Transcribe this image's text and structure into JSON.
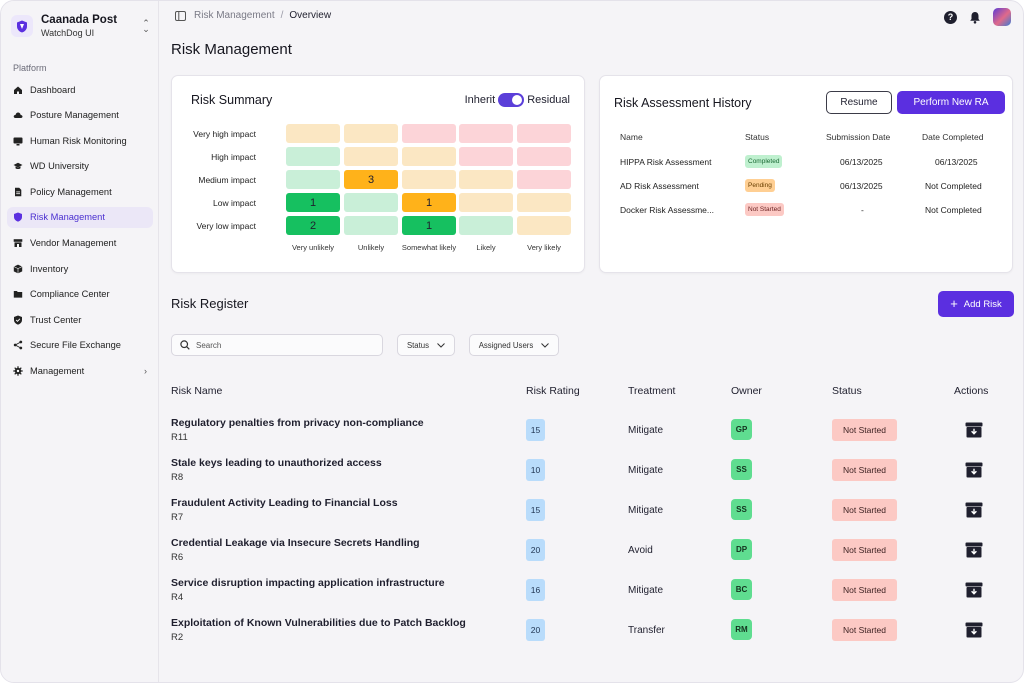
{
  "org": {
    "name": "Caanada Post",
    "subtitle": "WatchDog UI"
  },
  "sidebar": {
    "section_label": "Platform",
    "items": [
      {
        "label": "Dashboard",
        "icon": "home-icon"
      },
      {
        "label": "Posture Management",
        "icon": "cloud-icon"
      },
      {
        "label": "Human Risk Monitoring",
        "icon": "monitor-icon"
      },
      {
        "label": "WD University",
        "icon": "graduation-cap-icon"
      },
      {
        "label": "Policy Management",
        "icon": "document-icon"
      },
      {
        "label": "Risk Management",
        "icon": "shield-icon",
        "active": true
      },
      {
        "label": "Vendor Management",
        "icon": "storefront-icon"
      },
      {
        "label": "Inventory",
        "icon": "box-icon"
      },
      {
        "label": "Compliance Center",
        "icon": "folders-icon"
      },
      {
        "label": "Trust Center",
        "icon": "shield-check-icon"
      },
      {
        "label": "Secure File Exchange",
        "icon": "share-icon"
      },
      {
        "label": "Management",
        "icon": "gear-icon",
        "has_submenu": true
      }
    ]
  },
  "breadcrumb": {
    "parent": "Risk Management",
    "current": "Overview"
  },
  "page_title": "Risk Management",
  "risk_summary": {
    "title": "Risk Summary",
    "toggle_left": "Inherit",
    "toggle_right": "Residual",
    "toggle_state": "Residual",
    "impact_labels": [
      "Very high impact",
      "High impact",
      "Medium impact",
      "Low impact",
      "Very low impact"
    ],
    "likelihood_labels": [
      "Very unlikely",
      "Unlikely",
      "Somewhat likely",
      "Likely",
      "Very likely"
    ],
    "cells": [
      [
        "",
        "",
        "",
        "",
        ""
      ],
      [
        "",
        "",
        "",
        "",
        ""
      ],
      [
        "",
        "3",
        "",
        "",
        ""
      ],
      [
        "1",
        "",
        "1",
        "",
        ""
      ],
      [
        "2",
        "",
        "1",
        "",
        ""
      ]
    ],
    "colors": {
      "green_light": "#c9efd8",
      "green_strong": "#16c060",
      "beige": "#fbe7c3",
      "pink": "#fcd4d8",
      "orange": "#ffb21a"
    }
  },
  "ra_history": {
    "title": "Risk Assessment History",
    "resume_label": "Resume",
    "perform_label": "Perform New RA",
    "headers": [
      "Name",
      "Status",
      "Submission Date",
      "Date Completed"
    ],
    "rows": [
      {
        "name": "HIPPA Risk Assessment",
        "status": "Completed",
        "submitted": "06/13/2025",
        "completed": "06/13/2025"
      },
      {
        "name": "AD Risk Assessment",
        "status": "Pending",
        "submitted": "06/13/2025",
        "completed": "Not Completed"
      },
      {
        "name": "Docker Risk Assessme...",
        "status": "Not Started",
        "submitted": "-",
        "completed": "Not Completed"
      }
    ]
  },
  "register": {
    "title": "Risk Register",
    "add_label": "Add Risk",
    "search_placeholder": "Search",
    "filter_status": "Status",
    "filter_users": "Assigned Users",
    "headers": [
      "Risk Name",
      "Risk Rating",
      "Treatment",
      "Owner",
      "Status",
      "Actions"
    ],
    "rows": [
      {
        "name": "Regulatory penalties from privacy non-compliance",
        "id": "R11",
        "rating": "15",
        "treatment": "Mitigate",
        "owner": "GP",
        "status": "Not Started"
      },
      {
        "name": "Stale keys leading to unauthorized access",
        "id": "R8",
        "rating": "10",
        "treatment": "Mitigate",
        "owner": "SS",
        "status": "Not Started"
      },
      {
        "name": "Fraudulent Activity Leading to Financial Loss",
        "id": "R7",
        "rating": "15",
        "treatment": "Mitigate",
        "owner": "SS",
        "status": "Not Started"
      },
      {
        "name": "Credential Leakage via Insecure Secrets Handling",
        "id": "R6",
        "rating": "20",
        "treatment": "Avoid",
        "owner": "DP",
        "status": "Not Started"
      },
      {
        "name": "Service disruption impacting application infrastructure",
        "id": "R4",
        "rating": "16",
        "treatment": "Mitigate",
        "owner": "BC",
        "status": "Not Started"
      },
      {
        "name": "Exploitation of Known Vulnerabilities due to Patch Backlog",
        "id": "R2",
        "rating": "20",
        "treatment": "Transfer",
        "owner": "RM",
        "status": "Not Started"
      }
    ]
  },
  "accent_color": "#5b2fe0"
}
